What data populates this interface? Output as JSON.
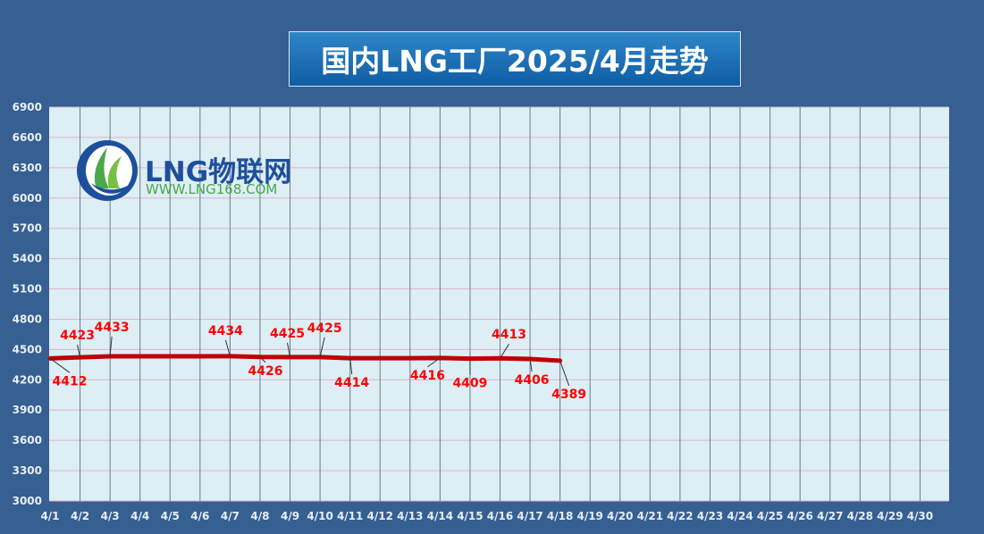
{
  "title": "国内LNG工厂2025/4月走势",
  "logo": {
    "brand": "LNG物联网",
    "url": "WWW.LNG168.COM"
  },
  "colors": {
    "background": "#365f92",
    "plot_area": "#ddeef5",
    "line": "#c00000",
    "label": "#ff0000",
    "tick_text": "#e8eef6"
  },
  "chart_data": {
    "type": "line",
    "title": "国内LNG工厂2025/4月走势",
    "xlabel": "",
    "ylabel": "",
    "ylim": [
      3000,
      6900
    ],
    "yticks": [
      3000,
      3300,
      3600,
      3900,
      4200,
      4500,
      4800,
      5100,
      5400,
      5700,
      6000,
      6300,
      6600,
      6900
    ],
    "grid": true,
    "categories": [
      "4/1",
      "4/2",
      "4/3",
      "4/4",
      "4/5",
      "4/6",
      "4/7",
      "4/8",
      "4/9",
      "4/10",
      "4/11",
      "4/12",
      "4/13",
      "4/14",
      "4/15",
      "4/16",
      "4/17",
      "4/18",
      "4/19",
      "4/20",
      "4/21",
      "4/22",
      "4/23",
      "4/24",
      "4/25",
      "4/26",
      "4/27",
      "4/28",
      "4/29",
      "4/30"
    ],
    "series": [
      {
        "values": [
          4412,
          4423,
          4433,
          4433,
          4433,
          4433,
          4434,
          4426,
          4425,
          4425,
          4414,
          4414,
          4414,
          4416,
          4409,
          4413,
          4406,
          4389,
          null,
          null,
          null,
          null,
          null,
          null,
          null,
          null,
          null,
          null,
          null,
          null
        ]
      }
    ],
    "data_labels": [
      {
        "index": 0,
        "text": "4412",
        "pos": "below"
      },
      {
        "index": 1,
        "text": "4423",
        "pos": "above"
      },
      {
        "index": 2,
        "text": "4433",
        "pos": "above"
      },
      {
        "index": 6,
        "text": "4434",
        "pos": "above"
      },
      {
        "index": 7,
        "text": "4426",
        "pos": "below"
      },
      {
        "index": 8,
        "text": "4425",
        "pos": "above"
      },
      {
        "index": 9,
        "text": "4425",
        "pos": "above"
      },
      {
        "index": 10,
        "text": "4414",
        "pos": "below"
      },
      {
        "index": 13,
        "text": "4416",
        "pos": "below"
      },
      {
        "index": 14,
        "text": "4409",
        "pos": "below"
      },
      {
        "index": 15,
        "text": "4413",
        "pos": "above"
      },
      {
        "index": 16,
        "text": "4406",
        "pos": "below"
      },
      {
        "index": 17,
        "text": "4389",
        "pos": "below"
      }
    ]
  }
}
